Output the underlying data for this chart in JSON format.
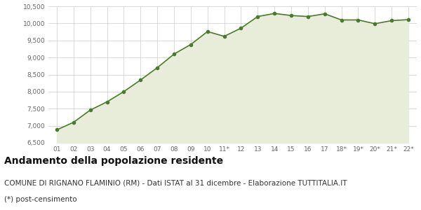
{
  "x_labels": [
    "01",
    "02",
    "03",
    "04",
    "05",
    "06",
    "07",
    "08",
    "09",
    "10",
    "11*",
    "12",
    "13",
    "14",
    "15",
    "16",
    "17",
    "18*",
    "19*",
    "20*",
    "21*",
    "22*"
  ],
  "y_values": [
    6880,
    7100,
    7460,
    7700,
    8000,
    8340,
    8700,
    9100,
    9380,
    9760,
    9620,
    9860,
    10200,
    10290,
    10230,
    10200,
    10280,
    10100,
    10100,
    9990,
    10080,
    10110
  ],
  "line_color": "#4a7a2e",
  "fill_color": "#e8edda",
  "marker_color": "#4a7a2e",
  "bg_color": "#ffffff",
  "grid_color": "#cccccc",
  "ylim": [
    6500,
    10500
  ],
  "yticks": [
    6500,
    7000,
    7500,
    8000,
    8500,
    9000,
    9500,
    10000,
    10500
  ],
  "title": "Andamento della popolazione residente",
  "subtitle": "COMUNE DI RIGNANO FLAMINIO (RM) - Dati ISTAT al 31 dicembre - Elaborazione TUTTITALIA.IT",
  "footnote": "(*) post-censimento",
  "title_fontsize": 10,
  "subtitle_fontsize": 7.5,
  "footnote_fontsize": 7.5
}
